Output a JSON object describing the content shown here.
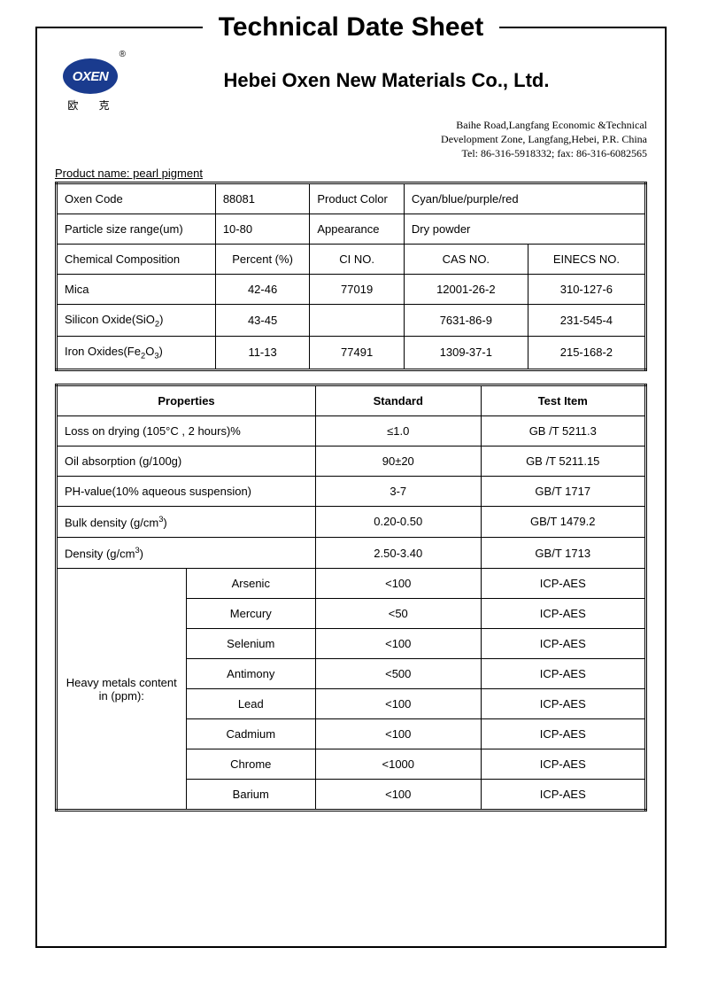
{
  "doc": {
    "title": "Technical Date Sheet",
    "logo_text": "OXEN",
    "logo_mark": "®",
    "logo_sub": "欧  克",
    "company": "Hebei Oxen New Materials Co., Ltd.",
    "address_l1": "Baihe Road,Langfang Economic &Technical",
    "address_l2": "Development Zone, Langfang,Hebei, P.R. China",
    "address_l3": "Tel: 86-316-5918332;     fax: 86-316-6082565",
    "product_name_label": "Product name: pearl pigment"
  },
  "t1": {
    "r1c1": "Oxen Code",
    "r1c2": "88081",
    "r1c3": "Product Color",
    "r1c4": "Cyan/blue/purple/red",
    "r2c1": "Particle size range(um)",
    "r2c2": "10-80",
    "r2c3": "Appearance",
    "r2c4": "Dry powder",
    "r3c1": "Chemical Composition",
    "r3c2": "Percent (%)",
    "r3c3": "CI NO.",
    "r3c4": "CAS NO.",
    "r3c5": "EINECS NO.",
    "r4c1": "Mica",
    "r4c2": "42-46",
    "r4c3": "77019",
    "r4c4": "12001-26-2",
    "r4c5": "310-127-6",
    "r5c1_a": "Silicon Oxide(SiO",
    "r5c1_b": ")",
    "r5c2": "43-45",
    "r5c3": "",
    "r5c4": "7631-86-9",
    "r5c5": "231-545-4",
    "r6c1_a": "Iron Oxides(Fe",
    "r6c1_b": "O",
    "r6c1_c": ")",
    "r6c2": "11-13",
    "r6c3": "77491",
    "r6c4": "1309-37-1",
    "r6c5": "215-168-2"
  },
  "t2": {
    "h1": "Properties",
    "h2": "Standard",
    "h3": "Test Item",
    "rows": [
      {
        "p": "Loss on drying (105°C , 2 hours)%",
        "s": "≤1.0",
        "t": "GB /T 5211.3"
      },
      {
        "p": "Oil absorption    (g/100g)",
        "s": "90±20",
        "t": "GB /T 5211.15"
      },
      {
        "p": "PH-value(10% aqueous suspension)",
        "s": "3-7",
        "t": "GB/T 1717"
      }
    ],
    "bulk_a": "Bulk density (g/cm",
    "bulk_b": ")",
    "bulk_s": "0.20-0.50",
    "bulk_t": "GB/T 1479.2",
    "dens_a": "Density (g/cm",
    "dens_b": ")",
    "dens_s": "2.50-3.40",
    "dens_t": "GB/T 1713",
    "heavy_label": "Heavy metals content in (ppm):",
    "heavy": [
      {
        "n": "Arsenic",
        "s": "<100",
        "t": "ICP-AES"
      },
      {
        "n": "Mercury",
        "s": "<50",
        "t": "ICP-AES"
      },
      {
        "n": "Selenium",
        "s": "<100",
        "t": "ICP-AES"
      },
      {
        "n": "Antimony",
        "s": "<500",
        "t": "ICP-AES"
      },
      {
        "n": "Lead",
        "s": "<100",
        "t": "ICP-AES"
      },
      {
        "n": "Cadmium",
        "s": "<100",
        "t": "ICP-AES"
      },
      {
        "n": "Chrome",
        "s": "<1000",
        "t": "ICP-AES"
      },
      {
        "n": "Barium",
        "s": "<100",
        "t": "ICP-AES"
      }
    ]
  },
  "style": {
    "page_bg": "#ffffff",
    "text_color": "#000000",
    "logo_bg": "#1a3b8e",
    "border_color": "#000000",
    "title_fontsize": 30,
    "body_fontsize": 13
  }
}
